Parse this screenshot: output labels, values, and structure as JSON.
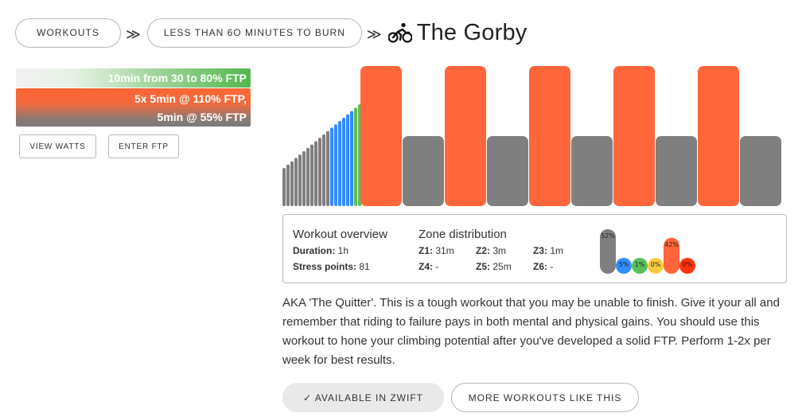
{
  "breadcrumb": {
    "workouts_label": "WORKOUTS",
    "category_label": "LESS THAN 6o MINUTES TO BURN",
    "separator": "≫"
  },
  "workout": {
    "title": "The Gorby",
    "icon": "cyclist-icon"
  },
  "segments": [
    {
      "text": "10min from 30 to 80% FTP"
    },
    {
      "text_line1": "5x 5min @ 110% FTP,",
      "text_line2": "5min @ 55% FTP"
    }
  ],
  "buttons": {
    "view_watts": "VIEW WATTS",
    "enter_ftp": "ENTER FTP",
    "available": "✓ AVAILABLE IN ZWIFT",
    "more": "MORE WORKOUTS LIKE THIS"
  },
  "colors": {
    "z1": "#7f7f7f",
    "z2": "#338cff",
    "z3": "#59bf59",
    "z4": "#ffcc3f",
    "z5": "#ff6639",
    "z6": "#ff330c"
  },
  "graph": {
    "ramp_from_pct": 30,
    "ramp_to_pct": 80,
    "ramp_minutes": 10,
    "intervals": [
      {
        "work_pct": 110,
        "work_min": 5,
        "rest_pct": 55,
        "rest_min": 5
      },
      {
        "work_pct": 110,
        "work_min": 5,
        "rest_pct": 55,
        "rest_min": 5
      },
      {
        "work_pct": 110,
        "work_min": 5,
        "rest_pct": 55,
        "rest_min": 5
      },
      {
        "work_pct": 110,
        "work_min": 5,
        "rest_pct": 55,
        "rest_min": 5
      },
      {
        "work_pct": 110,
        "work_min": 5,
        "rest_pct": 55,
        "rest_min": 5
      }
    ]
  },
  "overview": {
    "title": "Workout overview",
    "duration_label": "Duration:",
    "duration_value": "1h",
    "stress_label": "Stress points:",
    "stress_value": "81"
  },
  "zones": {
    "title": "Zone distribution",
    "items": [
      {
        "label": "Z1:",
        "value": "31m"
      },
      {
        "label": "Z2:",
        "value": "3m"
      },
      {
        "label": "Z3:",
        "value": "1m"
      },
      {
        "label": "Z4:",
        "value": "-"
      },
      {
        "label": "Z5:",
        "value": "25m"
      },
      {
        "label": "Z6:",
        "value": "-"
      }
    ],
    "percents": [
      "52%",
      "5%",
      "1%",
      "0%",
      "42%",
      "0%"
    ],
    "percent_values": [
      52,
      5,
      1,
      0,
      42,
      0
    ]
  },
  "description": "AKA 'The Quitter'. This is a tough workout that you may be unable to finish. Give it your all and remember that riding to failure pays in both mental and physical gains. You should use this workout to hone your climbing potential after you've developed a solid FTP. Perform 1-2x per week for best results."
}
